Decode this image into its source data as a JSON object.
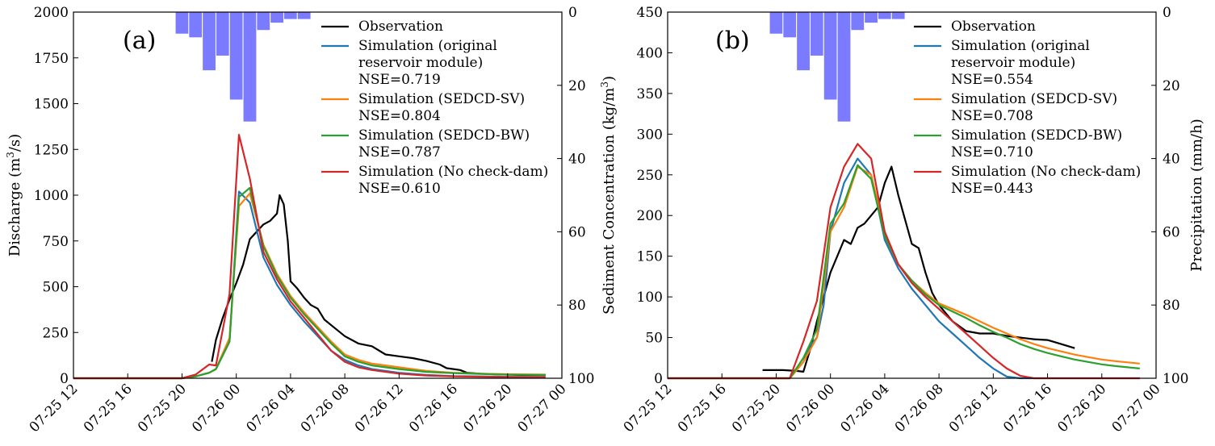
{
  "colors": {
    "observation": "#000000",
    "original": "#1f77b4",
    "sv": "#ff7f0e",
    "bw": "#2ca02c",
    "nocheck": "#d62728",
    "precip": "#7b7bff"
  },
  "chart_data": [
    {
      "type": "line",
      "panel_label": "(a)",
      "ylabel": "Discharge (m³/s)",
      "ylabel_parts": [
        "Discharge (m",
        "3",
        "/s)"
      ],
      "ylim": [
        0,
        2000
      ],
      "yticks": [
        0,
        250,
        500,
        750,
        1000,
        1250,
        1500,
        1750,
        2000
      ],
      "ytick_labels": [
        "0",
        "250",
        "500",
        "750",
        "1000",
        "1250",
        "1500",
        "1750",
        "2000"
      ],
      "xlim": [
        12,
        48
      ],
      "xticks": [
        12,
        16,
        20,
        24,
        28,
        32,
        36,
        40,
        44,
        48
      ],
      "xtick_labels": [
        "07-25 12",
        "07-25 16",
        "07-25 20",
        "07-26 00",
        "07-26 04",
        "07-26 08",
        "07-26 12",
        "07-26 16",
        "07-26 20",
        "07-27 00"
      ],
      "y2lim": [
        0,
        100
      ],
      "y2ticks": [
        0,
        20,
        40,
        60,
        80,
        100
      ],
      "y2tick_labels": [
        "0",
        "20",
        "40",
        "60",
        "80",
        "100"
      ],
      "y2label": "",
      "precipitation": {
        "bar_starts": [
          19.5,
          20.5,
          21.5,
          22.5,
          23.5,
          24.5,
          25.5,
          26.5,
          27.5,
          28.5
        ],
        "bar_width": 1,
        "values": [
          6,
          7,
          16,
          12,
          24,
          30,
          5,
          3,
          2,
          2
        ]
      },
      "legend": [
        {
          "key": "observation",
          "lines": [
            "Observation"
          ]
        },
        {
          "key": "original",
          "lines": [
            "Simulation (original",
            "reservoir module)",
            "NSE=0.719"
          ]
        },
        {
          "key": "sv",
          "lines": [
            "Simulation (SEDCD-SV)",
            "NSE=0.804"
          ]
        },
        {
          "key": "bw",
          "lines": [
            "Simulation (SEDCD-BW)",
            "NSE=0.787"
          ]
        },
        {
          "key": "nocheck",
          "lines": [
            "Simulation (No check-dam)",
            "NSE=0.610"
          ]
        }
      ],
      "series": [
        {
          "name": "Observation",
          "key": "observation",
          "x": [
            22.2,
            22.5,
            23,
            23.5,
            24,
            24.5,
            25,
            25.5,
            26,
            26.5,
            27,
            27.2,
            27.5,
            27.8,
            28,
            28.5,
            29,
            29.5,
            30,
            30.5,
            31,
            32,
            33,
            34,
            35,
            36,
            37,
            38,
            39,
            39.5,
            40,
            40.5,
            41,
            42,
            43,
            44,
            45,
            46,
            46.8
          ],
          "y": [
            90,
            210,
            330,
            430,
            520,
            620,
            760,
            800,
            840,
            860,
            900,
            1000,
            950,
            750,
            530,
            490,
            440,
            400,
            380,
            320,
            290,
            230,
            190,
            175,
            130,
            120,
            110,
            95,
            75,
            55,
            50,
            45,
            30,
            25,
            22,
            20,
            18,
            18,
            18
          ]
        },
        {
          "name": "Simulation (original reservoir module)",
          "key": "original",
          "x": [
            12,
            20,
            21,
            22,
            22.5,
            23.5,
            24.2,
            25,
            26,
            27,
            28,
            29,
            30,
            31,
            32,
            33,
            34,
            36,
            38,
            40,
            42,
            44,
            46.8
          ],
          "y": [
            0,
            0,
            10,
            30,
            50,
            200,
            1020,
            960,
            660,
            510,
            400,
            310,
            230,
            150,
            100,
            70,
            50,
            30,
            18,
            12,
            10,
            8,
            8
          ]
        },
        {
          "name": "Simulation (SEDCD-SV)",
          "key": "sv",
          "x": [
            12,
            20,
            21,
            22,
            22.5,
            23.5,
            24.2,
            25,
            26,
            27,
            28,
            29,
            30,
            31,
            32,
            33,
            34,
            36,
            38,
            40,
            42,
            44,
            46.8
          ],
          "y": [
            0,
            0,
            10,
            30,
            50,
            220,
            940,
            1010,
            730,
            570,
            450,
            360,
            280,
            200,
            130,
            100,
            80,
            60,
            40,
            30,
            25,
            22,
            20
          ]
        },
        {
          "name": "Simulation (SEDCD-BW)",
          "key": "bw",
          "x": [
            12,
            20,
            21,
            22,
            22.5,
            23.5,
            24.2,
            25,
            26,
            27,
            28,
            29,
            30,
            31,
            32,
            33,
            34,
            36,
            38,
            40,
            42,
            44,
            46.8
          ],
          "y": [
            0,
            0,
            10,
            30,
            50,
            200,
            990,
            1040,
            720,
            560,
            440,
            350,
            270,
            190,
            120,
            90,
            70,
            50,
            35,
            28,
            24,
            20,
            18
          ]
        },
        {
          "name": "Simulation (No check-dam)",
          "key": "nocheck",
          "x": [
            12,
            20,
            21,
            22,
            22.5,
            23.5,
            24.2,
            25,
            26,
            27,
            28,
            29,
            30,
            31,
            32,
            33,
            34,
            36,
            38,
            40,
            42,
            44,
            46.8
          ],
          "y": [
            0,
            0,
            20,
            75,
            70,
            460,
            1330,
            1090,
            690,
            540,
            420,
            330,
            240,
            150,
            90,
            60,
            45,
            25,
            15,
            10,
            8,
            6,
            6
          ]
        }
      ]
    },
    {
      "type": "line",
      "panel_label": "(b)",
      "ylabel": "Sediment Concentration (kg/m³)",
      "ylabel_parts": [
        "Sediment Concentration (kg/m",
        "3",
        ")"
      ],
      "ylim": [
        0,
        450
      ],
      "yticks": [
        0,
        50,
        100,
        150,
        200,
        250,
        300,
        350,
        400,
        450
      ],
      "ytick_labels": [
        "0",
        "50",
        "100",
        "150",
        "200",
        "250",
        "300",
        "350",
        "400",
        "450"
      ],
      "xlim": [
        12,
        48
      ],
      "xticks": [
        12,
        16,
        20,
        24,
        28,
        32,
        36,
        40,
        44,
        48
      ],
      "xtick_labels": [
        "07-25 12",
        "07-25 16",
        "07-25 20",
        "07-26 00",
        "07-26 04",
        "07-26 08",
        "07-26 12",
        "07-26 16",
        "07-26 20",
        "07-27 00"
      ],
      "y2lim": [
        0,
        100
      ],
      "y2ticks": [
        0,
        20,
        40,
        60,
        80,
        100
      ],
      "y2tick_labels": [
        "0",
        "20",
        "40",
        "60",
        "80",
        "100"
      ],
      "y2label": "Precipitation (mm/h)",
      "precipitation": {
        "bar_starts": [
          19.5,
          20.5,
          21.5,
          22.5,
          23.5,
          24.5,
          25.5,
          26.5,
          27.5,
          28.5
        ],
        "bar_width": 1,
        "values": [
          6,
          7,
          16,
          12,
          24,
          30,
          5,
          3,
          2,
          2
        ]
      },
      "legend": [
        {
          "key": "observation",
          "lines": [
            "Observation"
          ]
        },
        {
          "key": "original",
          "lines": [
            "Simulation (original",
            "reservoir module)",
            "NSE=0.554"
          ]
        },
        {
          "key": "sv",
          "lines": [
            "Simulation (SEDCD-SV)",
            "NSE=0.708"
          ]
        },
        {
          "key": "bw",
          "lines": [
            "Simulation (SEDCD-BW)",
            "NSE=0.710"
          ]
        },
        {
          "key": "nocheck",
          "lines": [
            "Simulation (No check-dam)",
            "NSE=0.443"
          ]
        }
      ],
      "series": [
        {
          "name": "Observation",
          "key": "observation",
          "x": [
            19,
            20.5,
            21.5,
            22,
            22.5,
            23,
            23.5,
            24,
            24.5,
            25,
            25.5,
            26,
            26.5,
            27,
            27.5,
            28,
            28.5,
            29,
            29.5,
            30,
            30.5,
            31,
            31.5,
            32,
            33,
            34,
            35,
            36,
            37,
            38,
            39,
            40,
            41,
            42
          ],
          "y": [
            10,
            10,
            9,
            8,
            35,
            70,
            100,
            130,
            150,
            170,
            165,
            185,
            190,
            200,
            210,
            240,
            260,
            225,
            195,
            165,
            160,
            130,
            105,
            90,
            70,
            58,
            55,
            55,
            52,
            50,
            48,
            47,
            42,
            37
          ]
        },
        {
          "name": "Simulation (original reservoir module)",
          "key": "original",
          "x": [
            12,
            20,
            21,
            22,
            22.5,
            23,
            23.5,
            24,
            25,
            26,
            27,
            28,
            29,
            30,
            31,
            32,
            33,
            34,
            35,
            36,
            37,
            38,
            39,
            40,
            42,
            44,
            46.8
          ],
          "y": [
            0,
            0,
            0,
            20,
            40,
            50,
            90,
            180,
            240,
            270,
            250,
            170,
            135,
            110,
            90,
            70,
            55,
            40,
            25,
            12,
            2,
            0,
            0,
            0,
            0,
            0,
            0
          ]
        },
        {
          "name": "Simulation (SEDCD-SV)",
          "key": "sv",
          "x": [
            12,
            20,
            21,
            22,
            23,
            24,
            25,
            26,
            27,
            28,
            29,
            30,
            31,
            32,
            33,
            34,
            35,
            36,
            37,
            38,
            39,
            40,
            41,
            42,
            43,
            44,
            45,
            46.8
          ],
          "y": [
            0,
            0,
            0,
            20,
            50,
            180,
            210,
            260,
            250,
            180,
            140,
            120,
            105,
            92,
            85,
            78,
            70,
            62,
            55,
            48,
            42,
            37,
            33,
            29,
            26,
            23,
            21,
            18
          ]
        },
        {
          "name": "Simulation (SEDCD-BW)",
          "key": "bw",
          "x": [
            12,
            20,
            21,
            22,
            23,
            24,
            25,
            26,
            27,
            28,
            29,
            30,
            31,
            32,
            33,
            34,
            35,
            36,
            37,
            38,
            39,
            40,
            41,
            42,
            43,
            44,
            45,
            46.8
          ],
          "y": [
            0,
            0,
            0,
            25,
            60,
            190,
            215,
            262,
            245,
            175,
            140,
            120,
            103,
            90,
            82,
            74,
            65,
            57,
            50,
            42,
            36,
            31,
            27,
            23,
            20,
            17,
            15,
            12
          ]
        },
        {
          "name": "Simulation (No check-dam)",
          "key": "nocheck",
          "x": [
            12,
            20,
            21,
            22,
            23,
            24,
            25,
            26,
            27,
            28,
            29,
            30,
            31,
            32,
            33,
            34,
            35,
            36,
            37,
            38,
            39,
            40,
            41,
            42,
            44,
            46.8
          ],
          "y": [
            0,
            0,
            0,
            45,
            95,
            210,
            260,
            288,
            270,
            180,
            140,
            117,
            100,
            85,
            70,
            55,
            40,
            25,
            12,
            3,
            0,
            0,
            0,
            0,
            0,
            0
          ]
        }
      ]
    }
  ]
}
